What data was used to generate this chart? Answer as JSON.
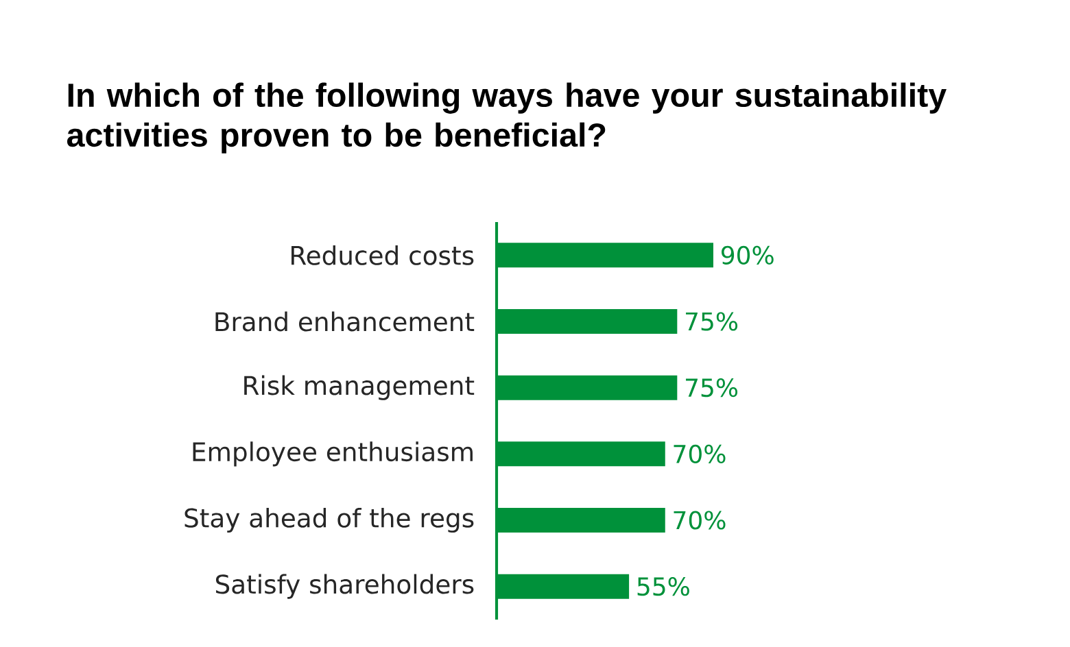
{
  "chart_data": {
    "type": "bar",
    "orientation": "horizontal",
    "title": "In which of the following ways have your sustainability activities proven to be beneficial?",
    "categories": [
      "Reduced costs",
      "Brand enhancement",
      "Risk management",
      "Employee enthusiasm",
      "Stay ahead of the regs",
      "Satisfy shareholders"
    ],
    "values": [
      90,
      75,
      75,
      70,
      70,
      55
    ],
    "value_labels": [
      "90%",
      "75%",
      "75%",
      "70%",
      "70%",
      "55%"
    ],
    "color": "#00913a"
  }
}
